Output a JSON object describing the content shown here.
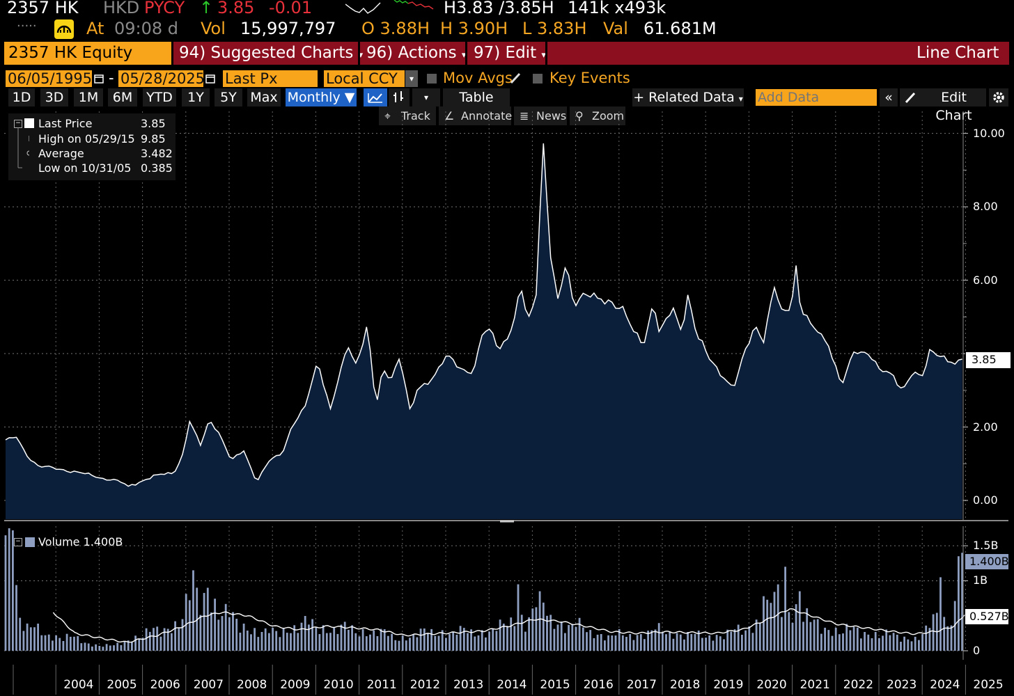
{
  "quote": {
    "ticker": "2357 HK",
    "currency": "HKD",
    "pycy": "PYCY",
    "arrow": "↑",
    "last": "3.85",
    "change": "-0.01",
    "bidask": "H3.83 /3.85H",
    "size": "141k x493k",
    "dots": ".....",
    "at_label": "At",
    "time": "09:08 d",
    "vol_label": "Vol",
    "vol": "15,997,797",
    "open": "O 3.88H",
    "high": "H 3.90H",
    "low": "L 3.83H",
    "val_label": "Val",
    "val": "61.681M",
    "sparkline_colors": [
      "#ffffff",
      "#29c729",
      "#e8313a"
    ]
  },
  "toolbar": {
    "security": "2357 HK Equity",
    "suggested": "94) Suggested Charts",
    "actions": "96) Actions",
    "edit": "97) Edit",
    "chart_type": "Line Chart",
    "caret": "▾"
  },
  "settings": {
    "start_date": "06/05/1995",
    "dash": "-",
    "end_date": "05/28/2025",
    "field": "Last Px",
    "currency": "Local CCY",
    "mov_avgs": "Mov Avgs",
    "key_events": "Key Events"
  },
  "periods": [
    "1D",
    "3D",
    "1M",
    "6M",
    "YTD",
    "1Y",
    "5Y",
    "Max"
  ],
  "frequency": "Monthly ▼",
  "buttons": {
    "table": "Table",
    "related": "+ Related Data",
    "add_data_placeholder": "Add Data",
    "collapse": "«",
    "edit_chart": "Edit Chart"
  },
  "tools": [
    "Track",
    "Annotate",
    "News",
    "Zoom"
  ],
  "legend": {
    "rows": [
      {
        "label": "Last Price",
        "value": "3.85"
      },
      {
        "label": "High on 05/29/15",
        "value": "9.85"
      },
      {
        "label": "Average",
        "value": "3.482"
      },
      {
        "label": "Low on 10/31/05",
        "value": "0.385"
      }
    ],
    "volume_label": "Volume 1.400B"
  },
  "colors": {
    "accent": "#f8a51c",
    "bar": "#8b0f1e",
    "area": "#0b1f3a",
    "volume": "#8e9fc2",
    "blue_button": "#1f63c6"
  },
  "chart_data": [
    {
      "type": "area",
      "series": [
        {
          "name": "Last Price"
        }
      ],
      "x_start": "2003-01",
      "x_end": "2025-05",
      "frequency": "monthly",
      "x_tick_labels": [
        "2004",
        "2005",
        "2006",
        "2007",
        "2008",
        "2009",
        "2010",
        "2011",
        "2012",
        "2013",
        "2014",
        "2015",
        "2016",
        "2017",
        "2018",
        "2019",
        "2020",
        "2021",
        "2022",
        "2023",
        "2024",
        "2025"
      ],
      "y_tick_labels": [
        "0.00",
        "2.00",
        "4.00",
        "6.00",
        "8.00",
        "10.00"
      ],
      "ylim": [
        -0.55,
        10.6
      ],
      "last_value_label": "3.85",
      "anchors": [
        [
          2003.0,
          1.65
        ],
        [
          2003.25,
          1.72
        ],
        [
          2003.5,
          1.2
        ],
        [
          2003.75,
          0.95
        ],
        [
          2004.25,
          0.85
        ],
        [
          2004.75,
          0.75
        ],
        [
          2005.25,
          0.6
        ],
        [
          2005.6,
          0.55
        ],
        [
          2005.83,
          0.385
        ],
        [
          2006.2,
          0.55
        ],
        [
          2006.5,
          0.7
        ],
        [
          2006.9,
          0.75
        ],
        [
          2007.1,
          1.3
        ],
        [
          2007.25,
          2.15
        ],
        [
          2007.5,
          1.5
        ],
        [
          2007.7,
          2.2
        ],
        [
          2007.9,
          1.9
        ],
        [
          2008.2,
          1.1
        ],
        [
          2008.5,
          1.35
        ],
        [
          2008.8,
          0.5
        ],
        [
          2009.1,
          1.1
        ],
        [
          2009.4,
          1.3
        ],
        [
          2009.6,
          2.0
        ],
        [
          2009.9,
          2.5
        ],
        [
          2010.2,
          3.8
        ],
        [
          2010.5,
          2.5
        ],
        [
          2010.9,
          4.2
        ],
        [
          2011.1,
          3.7
        ],
        [
          2011.35,
          4.8
        ],
        [
          2011.55,
          2.5
        ],
        [
          2011.7,
          3.6
        ],
        [
          2011.9,
          3.3
        ],
        [
          2012.1,
          3.9
        ],
        [
          2012.35,
          2.4
        ],
        [
          2012.5,
          3.0
        ],
        [
          2012.9,
          3.4
        ],
        [
          2013.2,
          4.0
        ],
        [
          2013.5,
          3.6
        ],
        [
          2013.8,
          3.5
        ],
        [
          2014.0,
          4.5
        ],
        [
          2014.2,
          4.7
        ],
        [
          2014.4,
          4.1
        ],
        [
          2014.7,
          4.7
        ],
        [
          2014.9,
          5.8
        ],
        [
          2015.05,
          4.9
        ],
        [
          2015.25,
          5.6
        ],
        [
          2015.41,
          9.85
        ],
        [
          2015.6,
          6.3
        ],
        [
          2015.75,
          5.5
        ],
        [
          2015.95,
          6.5
        ],
        [
          2016.1,
          5.4
        ],
        [
          2016.4,
          5.6
        ],
        [
          2016.7,
          5.5
        ],
        [
          2017.0,
          5.4
        ],
        [
          2017.3,
          5.1
        ],
        [
          2017.5,
          4.6
        ],
        [
          2017.75,
          4.3
        ],
        [
          2017.95,
          5.4
        ],
        [
          2018.1,
          4.5
        ],
        [
          2018.4,
          5.3
        ],
        [
          2018.6,
          4.6
        ],
        [
          2018.75,
          5.6
        ],
        [
          2018.95,
          4.5
        ],
        [
          2019.3,
          3.8
        ],
        [
          2019.6,
          3.3
        ],
        [
          2019.8,
          3.0
        ],
        [
          2020.1,
          4.2
        ],
        [
          2020.3,
          4.8
        ],
        [
          2020.5,
          4.3
        ],
        [
          2020.75,
          5.8
        ],
        [
          2020.95,
          5.1
        ],
        [
          2021.15,
          5.4
        ],
        [
          2021.25,
          6.4
        ],
        [
          2021.35,
          5.2
        ],
        [
          2021.6,
          4.8
        ],
        [
          2021.8,
          4.6
        ],
        [
          2022.0,
          4.2
        ],
        [
          2022.3,
          3.1
        ],
        [
          2022.6,
          4.1
        ],
        [
          2022.9,
          4.0
        ],
        [
          2023.15,
          3.6
        ],
        [
          2023.5,
          3.4
        ],
        [
          2023.7,
          3.0
        ],
        [
          2023.9,
          3.4
        ],
        [
          2024.2,
          3.4
        ],
        [
          2024.35,
          4.2
        ],
        [
          2024.6,
          3.9
        ],
        [
          2024.9,
          3.7
        ],
        [
          2025.1,
          3.85
        ]
      ]
    },
    {
      "type": "bar",
      "series": [
        {
          "name": "Volume"
        },
        {
          "name": "Moving average"
        }
      ],
      "units": "billions",
      "y_tick_labels": [
        "0",
        "1B",
        "1.5B"
      ],
      "ylim": [
        0,
        1.78
      ],
      "last_value_label": "1.400B",
      "moving_average_label": "0.527B",
      "volume_anchors": [
        [
          2003.0,
          1.65
        ],
        [
          2003.1,
          1.7
        ],
        [
          2003.2,
          1.45
        ],
        [
          2003.3,
          0.6
        ],
        [
          2003.5,
          0.35
        ],
        [
          2004.0,
          0.25
        ],
        [
          2004.5,
          0.2
        ],
        [
          2005.0,
          0.1
        ],
        [
          2005.5,
          0.07
        ],
        [
          2006.0,
          0.22
        ],
        [
          2006.5,
          0.3
        ],
        [
          2007.0,
          0.45
        ],
        [
          2007.3,
          0.8
        ],
        [
          2007.7,
          0.9
        ],
        [
          2008.0,
          0.55
        ],
        [
          2008.5,
          0.4
        ],
        [
          2009.0,
          0.25
        ],
        [
          2009.5,
          0.35
        ],
        [
          2010.0,
          0.4
        ],
        [
          2010.5,
          0.35
        ],
        [
          2011.0,
          0.32
        ],
        [
          2011.5,
          0.3
        ],
        [
          2012.0,
          0.2
        ],
        [
          2012.5,
          0.25
        ],
        [
          2013.0,
          0.3
        ],
        [
          2013.5,
          0.28
        ],
        [
          2014.0,
          0.3
        ],
        [
          2014.5,
          0.35
        ],
        [
          2014.85,
          0.6
        ],
        [
          2015.0,
          0.45
        ],
        [
          2015.3,
          0.75
        ],
        [
          2015.6,
          0.5
        ],
        [
          2016.0,
          0.4
        ],
        [
          2016.5,
          0.3
        ],
        [
          2017.0,
          0.22
        ],
        [
          2017.5,
          0.25
        ],
        [
          2018.0,
          0.3
        ],
        [
          2018.5,
          0.28
        ],
        [
          2019.0,
          0.22
        ],
        [
          2019.5,
          0.25
        ],
        [
          2020.0,
          0.3
        ],
        [
          2020.5,
          0.55
        ],
        [
          2020.8,
          0.8
        ],
        [
          2021.0,
          0.6
        ],
        [
          2021.3,
          0.7
        ],
        [
          2021.6,
          0.4
        ],
        [
          2022.0,
          0.35
        ],
        [
          2022.5,
          0.3
        ],
        [
          2023.0,
          0.28
        ],
        [
          2023.5,
          0.22
        ],
        [
          2024.0,
          0.2
        ],
        [
          2024.3,
          0.3
        ],
        [
          2024.5,
          0.55
        ],
        [
          2024.8,
          0.45
        ],
        [
          2025.0,
          0.9
        ],
        [
          2025.1,
          1.4
        ]
      ],
      "spikes": [
        [
          2003.0,
          1.65
        ],
        [
          2003.05,
          1.75
        ],
        [
          2003.15,
          1.72
        ],
        [
          2007.3,
          1.15
        ],
        [
          2007.7,
          0.9
        ],
        [
          2014.85,
          0.95
        ],
        [
          2015.3,
          0.85
        ],
        [
          2020.5,
          0.78
        ],
        [
          2021.0,
          1.2
        ],
        [
          2021.3,
          0.85
        ],
        [
          2024.6,
          1.05
        ],
        [
          2025.0,
          1.35
        ],
        [
          2025.1,
          1.4
        ]
      ],
      "ma_anchors": [
        [
          2004.1,
          0.55
        ],
        [
          2004.6,
          0.25
        ],
        [
          2005.2,
          0.18
        ],
        [
          2005.8,
          0.12
        ],
        [
          2006.5,
          0.22
        ],
        [
          2007.1,
          0.35
        ],
        [
          2007.6,
          0.5
        ],
        [
          2008.0,
          0.55
        ],
        [
          2008.6,
          0.5
        ],
        [
          2009.2,
          0.35
        ],
        [
          2009.8,
          0.3
        ],
        [
          2010.4,
          0.35
        ],
        [
          2011.0,
          0.33
        ],
        [
          2011.6,
          0.3
        ],
        [
          2012.2,
          0.22
        ],
        [
          2012.8,
          0.24
        ],
        [
          2013.4,
          0.26
        ],
        [
          2014.0,
          0.28
        ],
        [
          2014.6,
          0.35
        ],
        [
          2015.2,
          0.45
        ],
        [
          2015.8,
          0.42
        ],
        [
          2016.4,
          0.35
        ],
        [
          2017.0,
          0.27
        ],
        [
          2017.6,
          0.25
        ],
        [
          2018.2,
          0.27
        ],
        [
          2018.8,
          0.26
        ],
        [
          2019.4,
          0.25
        ],
        [
          2020.0,
          0.3
        ],
        [
          2020.6,
          0.45
        ],
        [
          2021.1,
          0.6
        ],
        [
          2021.6,
          0.5
        ],
        [
          2022.2,
          0.38
        ],
        [
          2022.8,
          0.33
        ],
        [
          2023.4,
          0.28
        ],
        [
          2024.0,
          0.24
        ],
        [
          2024.5,
          0.28
        ],
        [
          2024.9,
          0.35
        ],
        [
          2025.15,
          0.527
        ]
      ]
    }
  ]
}
